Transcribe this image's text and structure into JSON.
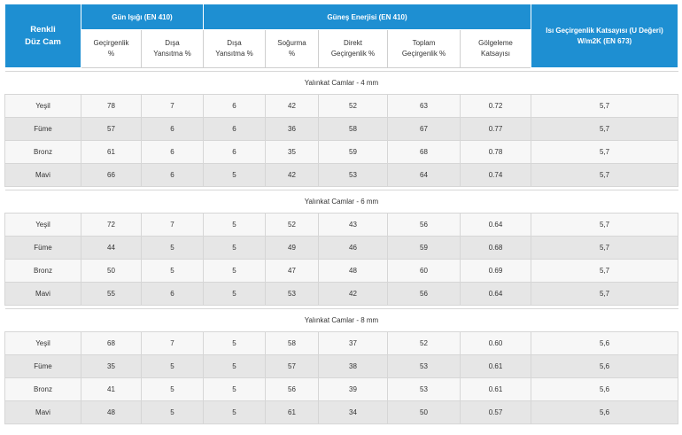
{
  "header": {
    "corner_line1": "Renkli",
    "corner_line2": "Düz Cam",
    "group_daylight": "Gün Işığı (EN 410)",
    "group_solar": "Güneş Enerjisi (EN 410)",
    "u_value_line1": "Isı Geçirgenlik Katsayısı (U Değeri)",
    "u_value_line2": "W/m2K (EN 673)",
    "sub": [
      [
        "Geçirgenlik",
        "%"
      ],
      [
        "Dışa",
        "Yansıtma %"
      ],
      [
        "Dışa",
        "Yansıtma %"
      ],
      [
        "Soğurma",
        "%"
      ],
      [
        "Direkt",
        "Geçirgenlik %"
      ],
      [
        "Toplam",
        "Geçirgenlik %"
      ],
      [
        "Gölgeleme",
        "Katsayısı"
      ]
    ]
  },
  "sections": [
    {
      "title": "Yalınkat Camlar - 4 mm",
      "rows": [
        [
          "Yeşil",
          "78",
          "7",
          "6",
          "42",
          "52",
          "63",
          "0.72",
          "5,7"
        ],
        [
          "Füme",
          "57",
          "6",
          "6",
          "36",
          "58",
          "67",
          "0.77",
          "5,7"
        ],
        [
          "Bronz",
          "61",
          "6",
          "6",
          "35",
          "59",
          "68",
          "0.78",
          "5,7"
        ],
        [
          "Mavi",
          "66",
          "6",
          "5",
          "42",
          "53",
          "64",
          "0.74",
          "5,7"
        ]
      ]
    },
    {
      "title": "Yalınkat Camlar - 6 mm",
      "rows": [
        [
          "Yeşil",
          "72",
          "7",
          "5",
          "52",
          "43",
          "56",
          "0.64",
          "5,7"
        ],
        [
          "Füme",
          "44",
          "5",
          "5",
          "49",
          "46",
          "59",
          "0.68",
          "5,7"
        ],
        [
          "Bronz",
          "50",
          "5",
          "5",
          "47",
          "48",
          "60",
          "0.69",
          "5,7"
        ],
        [
          "Mavi",
          "55",
          "6",
          "5",
          "53",
          "42",
          "56",
          "0.64",
          "5,7"
        ]
      ]
    },
    {
      "title": "Yalınkat Camlar - 8 mm",
      "rows": [
        [
          "Yeşil",
          "68",
          "7",
          "5",
          "58",
          "37",
          "52",
          "0.60",
          "5,6"
        ],
        [
          "Füme",
          "35",
          "5",
          "5",
          "57",
          "38",
          "53",
          "0.61",
          "5,6"
        ],
        [
          "Bronz",
          "41",
          "5",
          "5",
          "56",
          "39",
          "53",
          "0.61",
          "5,6"
        ],
        [
          "Mavi",
          "48",
          "5",
          "5",
          "61",
          "34",
          "50",
          "0.57",
          "5,6"
        ]
      ]
    }
  ],
  "colors": {
    "header_blue": "#1e8fd2",
    "row_light": "#f7f7f7",
    "row_dark": "#e6e6e6"
  }
}
